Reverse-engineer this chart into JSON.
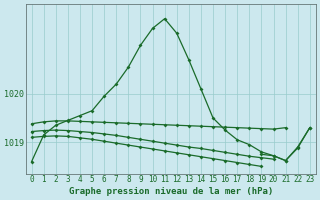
{
  "title": "Graphe pression niveau de la mer (hPa)",
  "background_color": "#cce8ee",
  "grid_color": "#99cccc",
  "line_color": "#1a6b2a",
  "x_values": [
    0,
    1,
    2,
    3,
    4,
    5,
    6,
    7,
    8,
    9,
    10,
    11,
    12,
    13,
    14,
    15,
    16,
    17,
    18,
    19,
    20,
    21,
    22,
    23
  ],
  "x_labels": [
    "0",
    "1",
    "2",
    "3",
    "4",
    "5",
    "6",
    "7",
    "8",
    "9",
    "10",
    "11",
    "12",
    "13",
    "14",
    "15",
    "16",
    "17",
    "18",
    "19",
    "20",
    "21",
    "22",
    "23"
  ],
  "main_y": [
    1018.6,
    1019.15,
    1019.35,
    1019.45,
    1019.55,
    1019.65,
    1019.95,
    1020.2,
    1020.55,
    1021.0,
    1021.35,
    1021.55,
    1021.25,
    1020.7,
    1020.1,
    1019.5,
    1019.25,
    1019.05,
    1018.95,
    1018.8,
    1018.72,
    1018.62,
    1018.9,
    1019.3
  ],
  "flat_y": [
    1019.38,
    1019.42,
    1019.44,
    1019.44,
    1019.43,
    1019.42,
    1019.41,
    1019.4,
    1019.39,
    1019.38,
    1019.37,
    1019.36,
    1019.35,
    1019.34,
    1019.33,
    1019.32,
    1019.31,
    1019.3,
    1019.29,
    1019.28,
    1019.27,
    1019.3,
    null,
    null
  ],
  "decl_y": [
    1019.22,
    1019.24,
    1019.25,
    1019.24,
    1019.22,
    1019.2,
    1019.17,
    1019.14,
    1019.1,
    1019.06,
    1019.02,
    1018.98,
    1018.94,
    1018.9,
    1018.87,
    1018.83,
    1018.79,
    1018.75,
    1018.71,
    1018.68,
    1018.65,
    null,
    null,
    null
  ],
  "bot_y": [
    1019.1,
    1019.12,
    1019.13,
    1019.12,
    1019.09,
    1019.06,
    1019.02,
    1018.98,
    1018.94,
    1018.9,
    1018.86,
    1018.82,
    1018.78,
    1018.74,
    1018.7,
    1018.66,
    1018.62,
    1018.58,
    1018.54,
    1018.5,
    null,
    null,
    null,
    null
  ],
  "right_x": [
    19,
    20,
    21,
    22,
    23
  ],
  "right_y": [
    1018.75,
    1018.72,
    1018.62,
    1018.88,
    1019.3
  ],
  "ylim": [
    1018.35,
    1021.85
  ],
  "yticks": [
    1019,
    1020
  ],
  "title_fontsize": 6.5,
  "tick_fontsize": 5.5,
  "marker_size": 2.0,
  "linewidth": 0.9
}
